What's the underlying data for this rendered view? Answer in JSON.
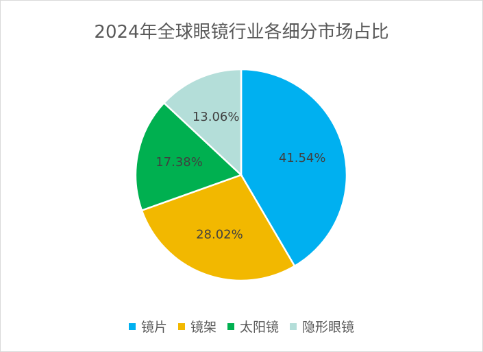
{
  "chart_data": {
    "type": "pie",
    "title": "2024年全球眼镜行业各细分市场占比",
    "categories": [
      "镜片",
      "镜架",
      "太阳镜",
      "隐形眼镜"
    ],
    "values": [
      41.54,
      28.02,
      17.38,
      13.06
    ],
    "data_labels": [
      "41.54%",
      "28.02%",
      "17.38%",
      "13.06%"
    ],
    "colors": [
      "#00B0F0",
      "#F2B800",
      "#00B050",
      "#B4DED9"
    ],
    "legend_position": "bottom"
  }
}
